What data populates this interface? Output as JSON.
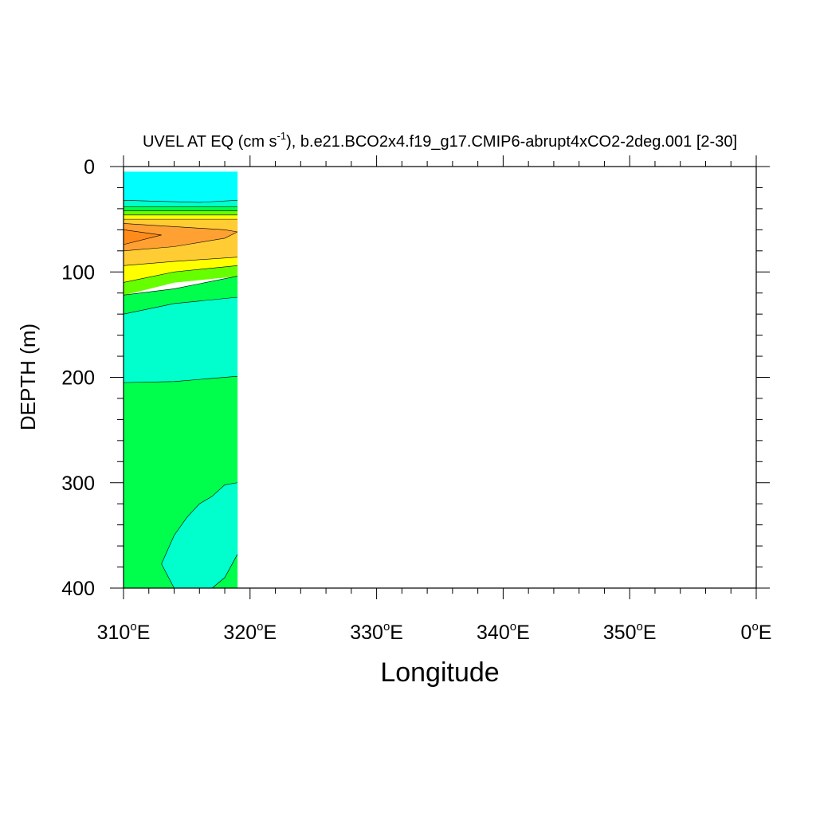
{
  "chart_data": {
    "type": "contour",
    "title": "UVEL AT EQ (cm s",
    "title_sup": "-1",
    "title_rest": "), b.e21.BCO2x4.f19_g17.CMIP6-abrupt4xCO2-2deg.001 [2-30]",
    "xlabel": "Longitude",
    "ylabel": "DEPTH (m)",
    "xlim": [
      310,
      360
    ],
    "ylim": [
      0,
      400
    ],
    "y_inverted": true,
    "data_extent_x": [
      310,
      319
    ],
    "data_extent_y": [
      5,
      400
    ],
    "x_ticks": [
      {
        "value": 310,
        "num": "310",
        "deg": "o",
        "dir": "E"
      },
      {
        "value": 320,
        "num": "320",
        "deg": "o",
        "dir": "E"
      },
      {
        "value": 330,
        "num": "330",
        "deg": "o",
        "dir": "E"
      },
      {
        "value": 340,
        "num": "340",
        "deg": "o",
        "dir": "E"
      },
      {
        "value": 350,
        "num": "350",
        "deg": "o",
        "dir": "E"
      },
      {
        "value": 360,
        "num": "0",
        "deg": "o",
        "dir": "E"
      }
    ],
    "y_ticks": [
      {
        "value": 0,
        "label": "0"
      },
      {
        "value": 100,
        "label": "100"
      },
      {
        "value": 200,
        "label": "200"
      },
      {
        "value": 300,
        "label": "300"
      },
      {
        "value": 400,
        "label": "400"
      }
    ],
    "colors": {
      "cyan": "#00ffff",
      "aquamarine": "#00ffcc",
      "green": "#00ff4d",
      "lime": "#66ff00",
      "yellow": "#ffff00",
      "light_orange": "#ffcc33",
      "orange": "#ffa033",
      "dark_orange": "#ff8c1a"
    },
    "fill_regions": [
      {
        "color": "cyan",
        "pts": [
          [
            310,
            5
          ],
          [
            319,
            5
          ],
          [
            319,
            32
          ],
          [
            316,
            34
          ],
          [
            313,
            33
          ],
          [
            310,
            32
          ]
        ]
      },
      {
        "color": "aquamarine",
        "pts": [
          [
            310,
            32
          ],
          [
            313,
            33
          ],
          [
            316,
            34
          ],
          [
            319,
            32
          ],
          [
            319,
            38
          ],
          [
            310,
            38
          ]
        ]
      },
      {
        "color": "green",
        "pts": [
          [
            310,
            38
          ],
          [
            319,
            38
          ],
          [
            319,
            42
          ],
          [
            310,
            42
          ]
        ]
      },
      {
        "color": "lime",
        "pts": [
          [
            310,
            42
          ],
          [
            319,
            42
          ],
          [
            319,
            46
          ],
          [
            310,
            46
          ]
        ]
      },
      {
        "color": "yellow",
        "pts": [
          [
            310,
            46
          ],
          [
            319,
            46
          ],
          [
            319,
            50
          ],
          [
            310,
            50
          ]
        ]
      },
      {
        "color": "light_orange",
        "pts": [
          [
            310,
            50
          ],
          [
            319,
            50
          ],
          [
            319,
            62
          ],
          [
            310,
            62
          ]
        ]
      },
      {
        "color": "orange",
        "pts": [
          [
            310,
            54
          ],
          [
            318,
            60
          ],
          [
            319,
            62
          ],
          [
            318,
            68
          ],
          [
            314,
            76
          ],
          [
            310,
            80
          ]
        ]
      },
      {
        "color": "dark_orange",
        "pts": [
          [
            310,
            60
          ],
          [
            313,
            65
          ],
          [
            310,
            74
          ]
        ]
      },
      {
        "color": "light_orange",
        "pts": [
          [
            310,
            80
          ],
          [
            314,
            76
          ],
          [
            318,
            68
          ],
          [
            319,
            62
          ],
          [
            319,
            86
          ],
          [
            314,
            90
          ],
          [
            310,
            94
          ]
        ]
      },
      {
        "color": "yellow",
        "pts": [
          [
            310,
            94
          ],
          [
            314,
            90
          ],
          [
            319,
            86
          ],
          [
            319,
            94
          ],
          [
            314,
            100
          ],
          [
            310,
            110
          ]
        ]
      },
      {
        "color": "lime",
        "pts": [
          [
            310,
            110
          ],
          [
            314,
            100
          ],
          [
            319,
            94
          ],
          [
            319,
            104
          ],
          [
            314,
            110
          ],
          [
            310,
            122
          ]
        ]
      },
      {
        "color": "green",
        "pts": [
          [
            310,
            122
          ],
          [
            314,
            116
          ],
          [
            319,
            104
          ],
          [
            319,
            124
          ],
          [
            314,
            130
          ],
          [
            310,
            140
          ]
        ]
      },
      {
        "color": "aquamarine",
        "pts": [
          [
            310,
            140
          ],
          [
            314,
            130
          ],
          [
            319,
            124
          ],
          [
            319,
            199
          ],
          [
            314,
            204
          ],
          [
            310,
            205
          ]
        ]
      },
      {
        "color": "green",
        "pts": [
          [
            310,
            205
          ],
          [
            314,
            204
          ],
          [
            319,
            199
          ],
          [
            319,
            400
          ],
          [
            310,
            400
          ]
        ]
      },
      {
        "color": "aquamarine",
        "pts": [
          [
            319,
            300
          ],
          [
            318,
            302
          ],
          [
            317,
            313
          ],
          [
            316,
            320
          ],
          [
            315,
            333
          ],
          [
            314,
            350
          ],
          [
            313,
            377
          ],
          [
            314,
            400
          ],
          [
            317,
            400
          ],
          [
            318,
            390
          ],
          [
            319,
            368
          ]
        ]
      }
    ],
    "contour_lines": [
      [
        [
          310,
          32
        ],
        [
          313,
          33
        ],
        [
          316,
          34
        ],
        [
          319,
          32
        ]
      ],
      [
        [
          310,
          38
        ],
        [
          319,
          38
        ]
      ],
      [
        [
          310,
          42
        ],
        [
          319,
          42
        ]
      ],
      [
        [
          310,
          46
        ],
        [
          319,
          46
        ]
      ],
      [
        [
          310,
          50
        ],
        [
          319,
          50
        ]
      ],
      [
        [
          310,
          54
        ],
        [
          318,
          60
        ],
        [
          319,
          62
        ]
      ],
      [
        [
          310,
          60
        ],
        [
          313,
          65
        ],
        [
          310,
          74
        ]
      ],
      [
        [
          310,
          80
        ],
        [
          314,
          76
        ],
        [
          318,
          68
        ],
        [
          319,
          62
        ]
      ],
      [
        [
          310,
          94
        ],
        [
          314,
          90
        ],
        [
          319,
          86
        ]
      ],
      [
        [
          310,
          110
        ],
        [
          314,
          100
        ],
        [
          319,
          94
        ]
      ],
      [
        [
          310,
          122
        ],
        [
          314,
          116
        ],
        [
          319,
          104
        ]
      ],
      [
        [
          310,
          140
        ],
        [
          314,
          130
        ],
        [
          319,
          124
        ]
      ],
      [
        [
          310,
          205
        ],
        [
          314,
          204
        ],
        [
          319,
          199
        ]
      ],
      [
        [
          319,
          300
        ],
        [
          318,
          302
        ],
        [
          317,
          313
        ],
        [
          316,
          320
        ],
        [
          315,
          333
        ],
        [
          314,
          350
        ],
        [
          313,
          377
        ],
        [
          314,
          400
        ]
      ],
      [
        [
          317,
          400
        ],
        [
          318,
          390
        ],
        [
          319,
          368
        ]
      ]
    ]
  }
}
